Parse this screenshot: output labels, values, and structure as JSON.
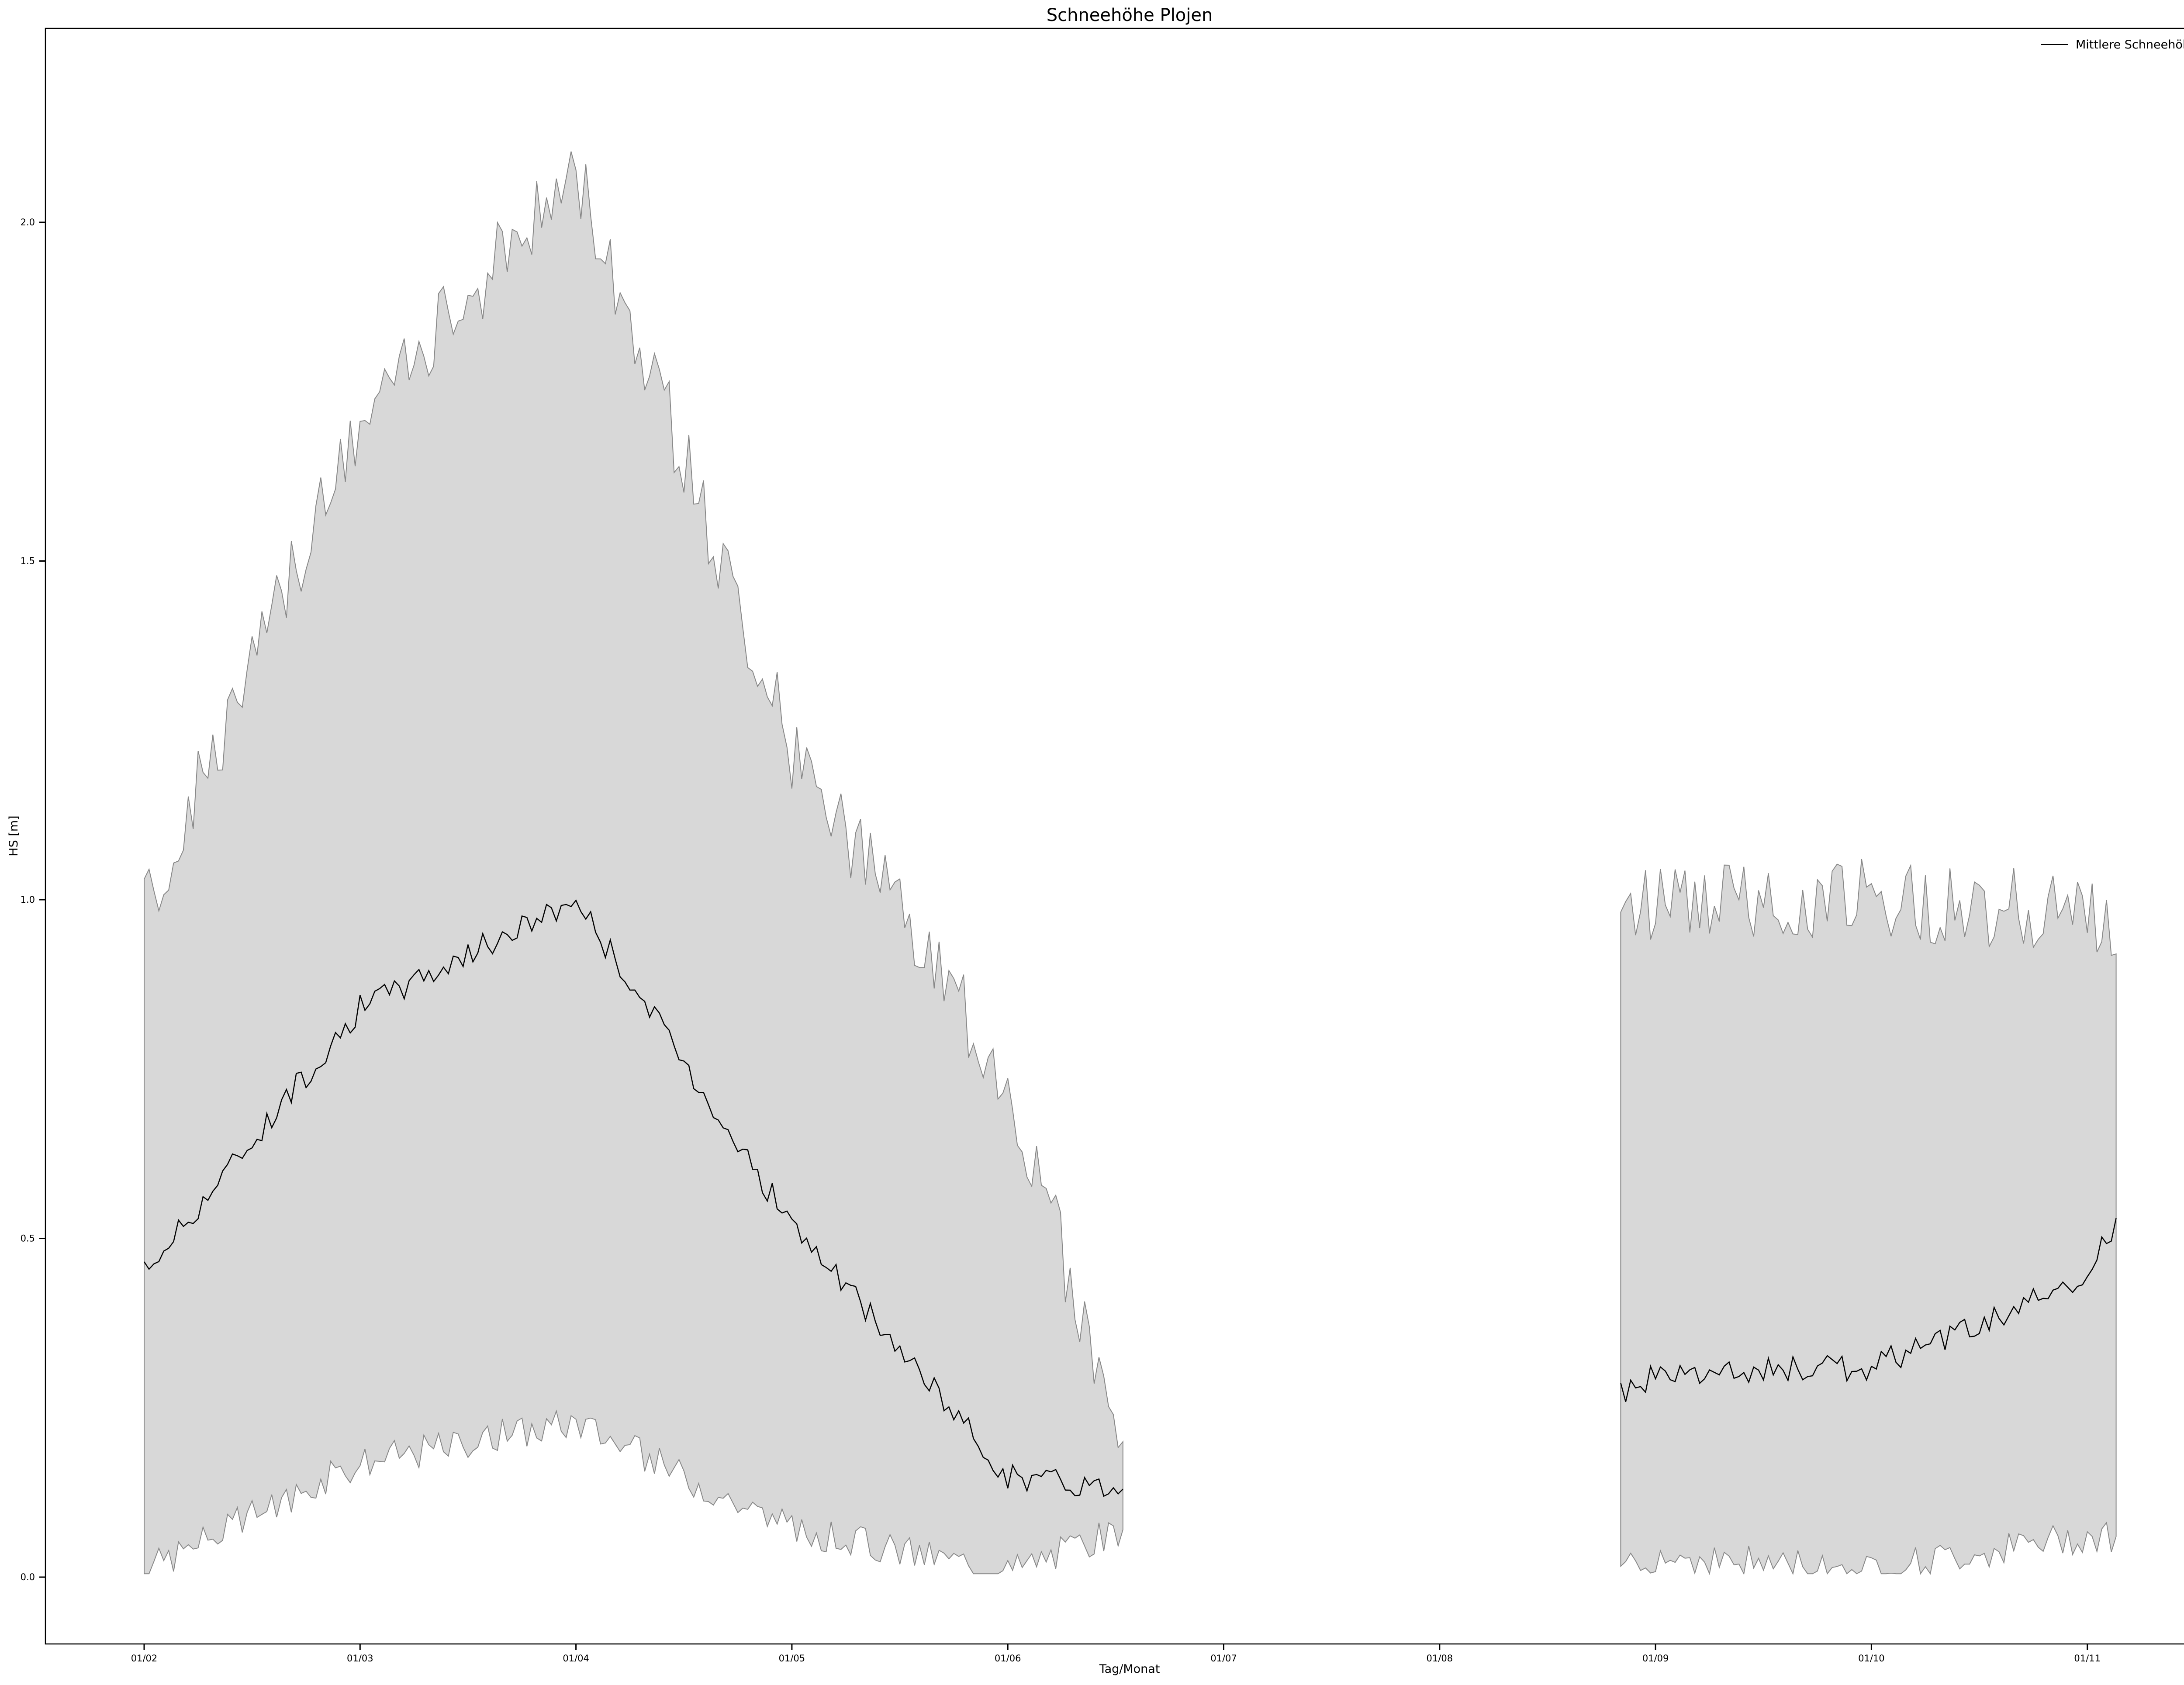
{
  "chart_data": {
    "type": "area",
    "title": "Schneehöhe  Plojen",
    "xlabel": "Tag/Monat",
    "ylabel": "HS [m]",
    "ylim": [
      -0.095,
      2.29
    ],
    "x_tick_labels": [
      "01/02",
      "01/03",
      "01/04",
      "01/05",
      "01/06",
      "01/07",
      "01/08",
      "01/09",
      "01/10",
      "01/11"
    ],
    "y_tick_labels": [
      "0.0",
      "0.5",
      "1.0",
      "1.5",
      "2.0"
    ],
    "legend": {
      "position": "top-right",
      "entries": [
        "Mittlere Schneehöhe"
      ]
    },
    "grid": false,
    "colors": {
      "band_fill": "#d8d8d8",
      "band_edge": "#888888",
      "mean_line": "#000000"
    },
    "series": [
      {
        "name": "Mittlere Schneehöhe",
        "segments": [
          {
            "x": [
              "01/02",
              "01/03",
              "01/04",
              "01/05",
              "01/06",
              "17/06"
            ],
            "mean": [
              0.45,
              0.84,
              1.0,
              0.52,
              0.15,
              0.13
            ],
            "max": [
              0.98,
              1.7,
              2.08,
              1.22,
              0.73,
              0.2
            ],
            "min": [
              0.01,
              0.17,
              0.23,
              0.07,
              0.01,
              0.07
            ]
          },
          {
            "x": [
              "27/08",
              "01/09",
              "01/10",
              "01/11",
              "05/11"
            ],
            "mean": [
              0.27,
              0.3,
              0.31,
              0.44,
              0.53
            ],
            "max": [
              1.0,
              1.0,
              1.0,
              0.98,
              0.92
            ],
            "min": [
              0.02,
              0.03,
              0.01,
              0.06,
              0.06
            ]
          }
        ]
      }
    ]
  }
}
